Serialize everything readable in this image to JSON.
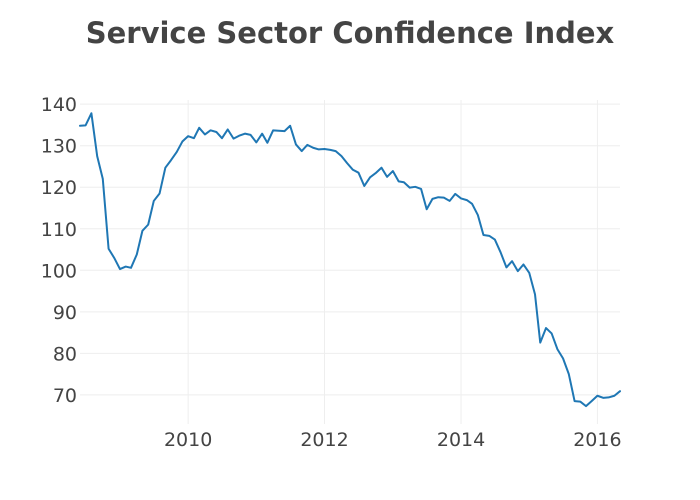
{
  "chart_data": {
    "type": "line",
    "title": "Service Sector Confidence Index",
    "xlabel": "",
    "ylabel": "",
    "grid": true,
    "legend": "none",
    "xlim": [
      "2008-06-01",
      "2016-05-01"
    ],
    "ylim": [
      63,
      141
    ],
    "x_ticks": [
      {
        "value": "2010-01-01",
        "label": "2010"
      },
      {
        "value": "2012-01-01",
        "label": "2012"
      },
      {
        "value": "2014-01-01",
        "label": "2014"
      },
      {
        "value": "2016-01-01",
        "label": "2016"
      }
    ],
    "y_ticks": [
      {
        "value": 70,
        "label": "70"
      },
      {
        "value": 80,
        "label": "80"
      },
      {
        "value": 90,
        "label": "90"
      },
      {
        "value": 100,
        "label": "100"
      },
      {
        "value": 110,
        "label": "110"
      },
      {
        "value": 120,
        "label": "120"
      },
      {
        "value": 130,
        "label": "130"
      },
      {
        "value": 140,
        "label": "140"
      }
    ],
    "line_color": "#1f77b4",
    "series": [
      {
        "x": [
          "2008-06",
          "2008-07",
          "2008-08",
          "2008-09",
          "2008-10",
          "2008-11",
          "2008-12",
          "2009-01",
          "2009-02",
          "2009-03",
          "2009-04",
          "2009-05",
          "2009-06",
          "2009-07",
          "2009-08",
          "2009-09",
          "2009-10",
          "2009-11",
          "2009-12",
          "2010-01",
          "2010-02",
          "2010-03",
          "2010-04",
          "2010-05",
          "2010-06",
          "2010-07",
          "2010-08",
          "2010-09",
          "2010-10",
          "2010-11",
          "2010-12",
          "2011-01",
          "2011-02",
          "2011-03",
          "2011-04",
          "2011-05",
          "2011-06",
          "2011-07",
          "2011-08",
          "2011-09",
          "2011-10",
          "2011-11",
          "2011-12",
          "2012-01",
          "2012-02",
          "2012-03",
          "2012-04",
          "2012-05",
          "2012-06",
          "2012-07",
          "2012-08",
          "2012-09",
          "2012-10",
          "2012-11",
          "2012-12",
          "2013-01",
          "2013-02",
          "2013-03",
          "2013-04",
          "2013-05",
          "2013-06",
          "2013-07",
          "2013-08",
          "2013-09",
          "2013-10",
          "2013-11",
          "2013-12",
          "2014-01",
          "2014-02",
          "2014-03",
          "2014-04",
          "2014-05",
          "2014-06",
          "2014-07",
          "2014-08",
          "2014-09",
          "2014-10",
          "2014-11",
          "2014-12",
          "2015-01",
          "2015-02",
          "2015-03",
          "2015-04",
          "2015-05",
          "2015-06",
          "2015-07",
          "2015-08",
          "2015-09",
          "2015-10",
          "2015-11",
          "2015-12",
          "2016-01",
          "2016-02",
          "2016-03",
          "2016-04",
          "2016-05"
        ],
        "values": [
          134.8,
          134.9,
          137.8,
          127.5,
          122.0,
          105.2,
          103.0,
          100.3,
          100.9,
          100.6,
          103.8,
          109.5,
          111.0,
          116.7,
          118.5,
          124.7,
          126.5,
          128.5,
          131.0,
          132.3,
          131.8,
          134.3,
          132.7,
          133.7,
          133.3,
          131.8,
          133.9,
          131.7,
          132.4,
          132.9,
          132.6,
          130.8,
          132.9,
          130.7,
          133.7,
          133.6,
          133.5,
          134.8,
          130.3,
          128.7,
          130.2,
          129.5,
          129.1,
          129.2,
          129.0,
          128.7,
          127.5,
          125.8,
          124.2,
          123.5,
          120.3,
          122.4,
          123.4,
          124.7,
          122.5,
          123.9,
          121.4,
          121.2,
          119.9,
          120.1,
          119.6,
          114.7,
          117.2,
          117.6,
          117.5,
          116.7,
          118.4,
          117.3,
          116.9,
          116.0,
          113.3,
          108.5,
          108.3,
          107.4,
          104.3,
          100.7,
          102.2,
          99.8,
          101.4,
          99.4,
          94.2,
          82.6,
          86.1,
          84.8,
          81.0,
          78.8,
          75.0,
          68.5,
          68.4,
          67.3,
          68.5,
          69.8,
          69.3,
          69.4,
          69.8,
          70.9
        ]
      }
    ]
  }
}
